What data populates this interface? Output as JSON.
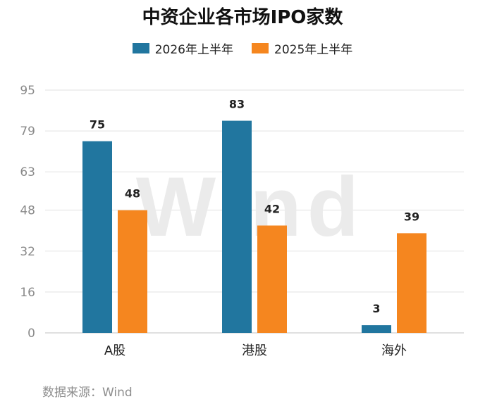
{
  "chart_data": {
    "type": "bar",
    "title": "中资企业各市场IPO家数",
    "categories": [
      "A股",
      "港股",
      "海外"
    ],
    "series": [
      {
        "name": "2026年上半年",
        "values": [
          75,
          83,
          3
        ],
        "color": "#21769f"
      },
      {
        "name": "2025年上半年",
        "values": [
          48,
          42,
          39
        ],
        "color": "#f5861f"
      }
    ],
    "yticks": [
      "0",
      "16",
      "32",
      "48",
      "63",
      "79",
      "95"
    ],
    "ylim": [
      0,
      95
    ],
    "grid": true,
    "legend_position": "top-center",
    "watermark": "Wind",
    "source": "数据来源：Wind"
  }
}
